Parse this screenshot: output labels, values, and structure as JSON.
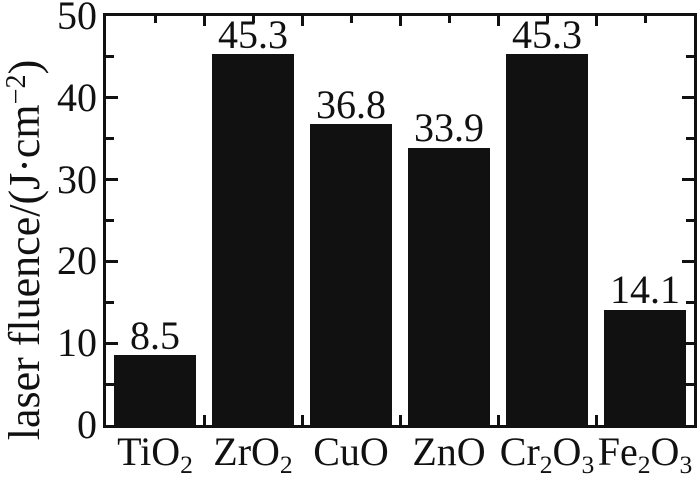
{
  "figure": {
    "background_color": "#ffffff",
    "bar_color": "#111111",
    "axis_color": "#111111",
    "text_color": "#111111"
  },
  "chart_data": {
    "type": "bar",
    "title": "",
    "xlabel": "",
    "ylabel": "laser fluence/(J·cm⁻²)",
    "ylabel_segments": [
      {
        "t": "laser fluence/(J·cm"
      },
      {
        "t": "−2",
        "sup": true
      },
      {
        "t": ")"
      }
    ],
    "categories": [
      {
        "plain": "TiO2",
        "segments": [
          {
            "t": "TiO"
          },
          {
            "t": "2",
            "sub": true
          }
        ]
      },
      {
        "plain": "ZrO2",
        "segments": [
          {
            "t": "ZrO"
          },
          {
            "t": "2",
            "sub": true
          }
        ]
      },
      {
        "plain": "CuO",
        "segments": [
          {
            "t": "CuO"
          }
        ]
      },
      {
        "plain": "ZnO",
        "segments": [
          {
            "t": "ZnO"
          }
        ]
      },
      {
        "plain": "Cr2O3",
        "segments": [
          {
            "t": "Cr"
          },
          {
            "t": "2",
            "sub": true
          },
          {
            "t": "O"
          },
          {
            "t": "3",
            "sub": true
          }
        ]
      },
      {
        "plain": "Fe2O3",
        "segments": [
          {
            "t": "Fe"
          },
          {
            "t": "2",
            "sub": true
          },
          {
            "t": "O"
          },
          {
            "t": "3",
            "sub": true
          }
        ]
      }
    ],
    "values": [
      8.5,
      45.3,
      36.8,
      33.9,
      45.3,
      14.1
    ],
    "value_labels": [
      "8.5",
      "45.3",
      "36.8",
      "33.9",
      "45.3",
      "14.1"
    ],
    "ylim": [
      0,
      50
    ],
    "ytick_values": [
      0,
      10,
      20,
      30,
      40,
      50
    ],
    "ytick_labels": [
      "0",
      "10",
      "20",
      "30",
      "40",
      "50"
    ],
    "yminor_step": 5,
    "grid": false,
    "legend": null,
    "frame": "full-box",
    "ticks_direction": "in"
  }
}
